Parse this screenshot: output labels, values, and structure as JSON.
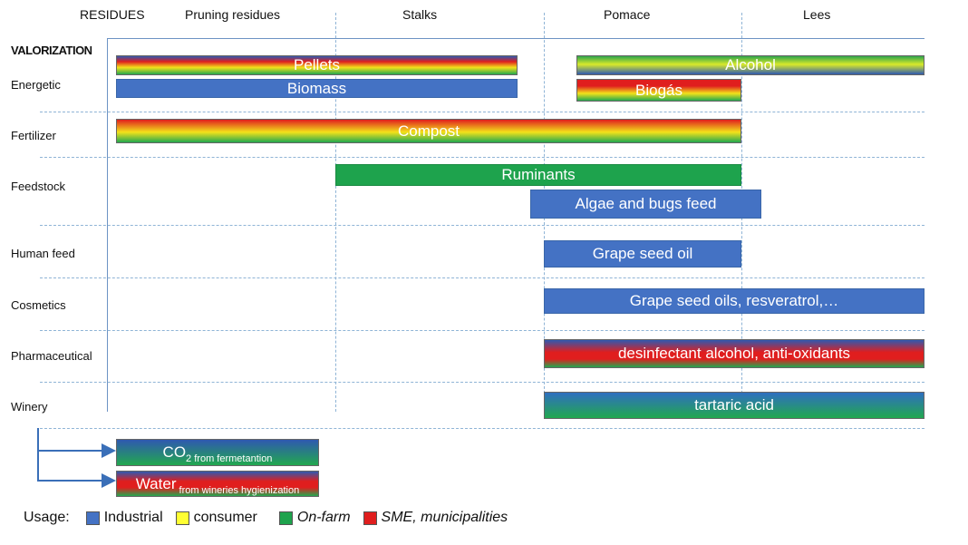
{
  "header": {
    "residues": "RESIDUES",
    "columns": [
      "Pruning residues",
      "Stalks",
      "Pomace",
      "Lees"
    ]
  },
  "rows": {
    "valorization": "VALORIZATION",
    "energetic": "Energetic",
    "fertilizer": "Fertilizer",
    "feedstock": "Feedstock",
    "human_feed": "Human feed",
    "cosmetics": "Cosmetics",
    "pharmaceutical": "Pharmaceutical",
    "winery": "Winery"
  },
  "bars": {
    "pellets": "Pellets",
    "biomass": "Biomass",
    "alcohol": "Alcohol",
    "biogas": "Biogás",
    "compost": "Compost",
    "ruminants": "Ruminants",
    "algae": "Algae and bugs feed",
    "grape_seed_oil": "Grape seed oil",
    "cosmetics_products": "Grape seed oils, resveratrol,…",
    "pharma_products": "desinfectant alcohol, anti-oxidants",
    "tartaric": "tartaric  acid",
    "co2_main": "CO",
    "co2_sub2": "2",
    "co2_sub": " from fermetantion",
    "water_main": "Water",
    "water_sub": " from wineries hygienization"
  },
  "legend": {
    "title": "Usage:",
    "items": [
      {
        "label": "Industrial",
        "color": "#4472c4"
      },
      {
        "label": "consumer",
        "color": "#ffff33"
      },
      {
        "label": "On-farm",
        "color": "#1ea34d"
      },
      {
        "label": "SME, municipalities",
        "color": "#e01e1e"
      }
    ]
  }
}
